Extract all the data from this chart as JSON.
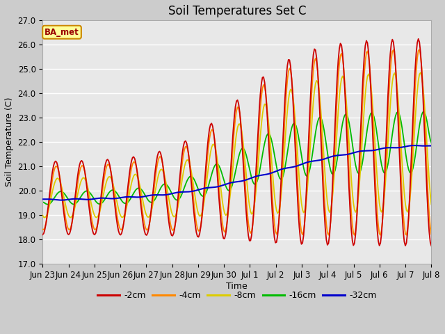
{
  "title": "Soil Temperatures Set C",
  "xlabel": "Time",
  "ylabel": "Soil Temperature (C)",
  "ylim": [
    17.0,
    27.0
  ],
  "yticks": [
    17.0,
    18.0,
    19.0,
    20.0,
    21.0,
    22.0,
    23.0,
    24.0,
    25.0,
    26.0,
    27.0
  ],
  "colors": {
    "-2cm": "#cc0000",
    "-4cm": "#ff8800",
    "-8cm": "#ddcc00",
    "-16cm": "#00bb00",
    "-32cm": "#0000cc"
  },
  "legend_label": "BA_met",
  "legend_bg": "#ffff99",
  "legend_border": "#cc8800",
  "x_tick_labels": [
    "Jun 23",
    "Jun 24",
    "Jun 25",
    "Jun 26",
    "Jun 27",
    "Jun 28",
    "Jun 29",
    "Jun 30",
    "Jul 1",
    "Jul 2",
    "Jul 3",
    "Jul 4",
    "Jul 5",
    "Jul 6",
    "Jul 7",
    "Jul 8"
  ],
  "title_fontsize": 12,
  "axis_label_fontsize": 9,
  "tick_fontsize": 8.5
}
